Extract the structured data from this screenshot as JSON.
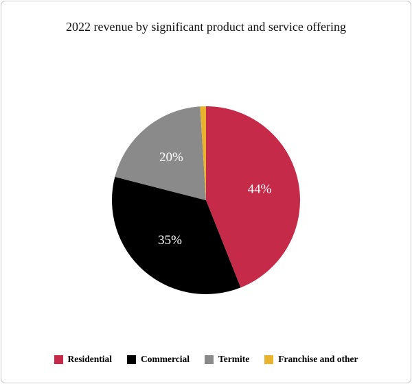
{
  "chart_data": {
    "type": "pie",
    "title": "2022 revenue by significant product and service offering",
    "labels": [
      "Residential",
      "Commercial",
      "Termite",
      "Franchise and other"
    ],
    "values": [
      44,
      35,
      20,
      1
    ],
    "data_labels": [
      "44%",
      "35%",
      "20%",
      ""
    ],
    "colors": [
      "#c62a49",
      "#000000",
      "#8a8a8a",
      "#e8b42d"
    ],
    "start_angle_deg": 0,
    "direction": "clockwise",
    "legend_position": "bottom",
    "data_label_color": "#ffffff"
  }
}
